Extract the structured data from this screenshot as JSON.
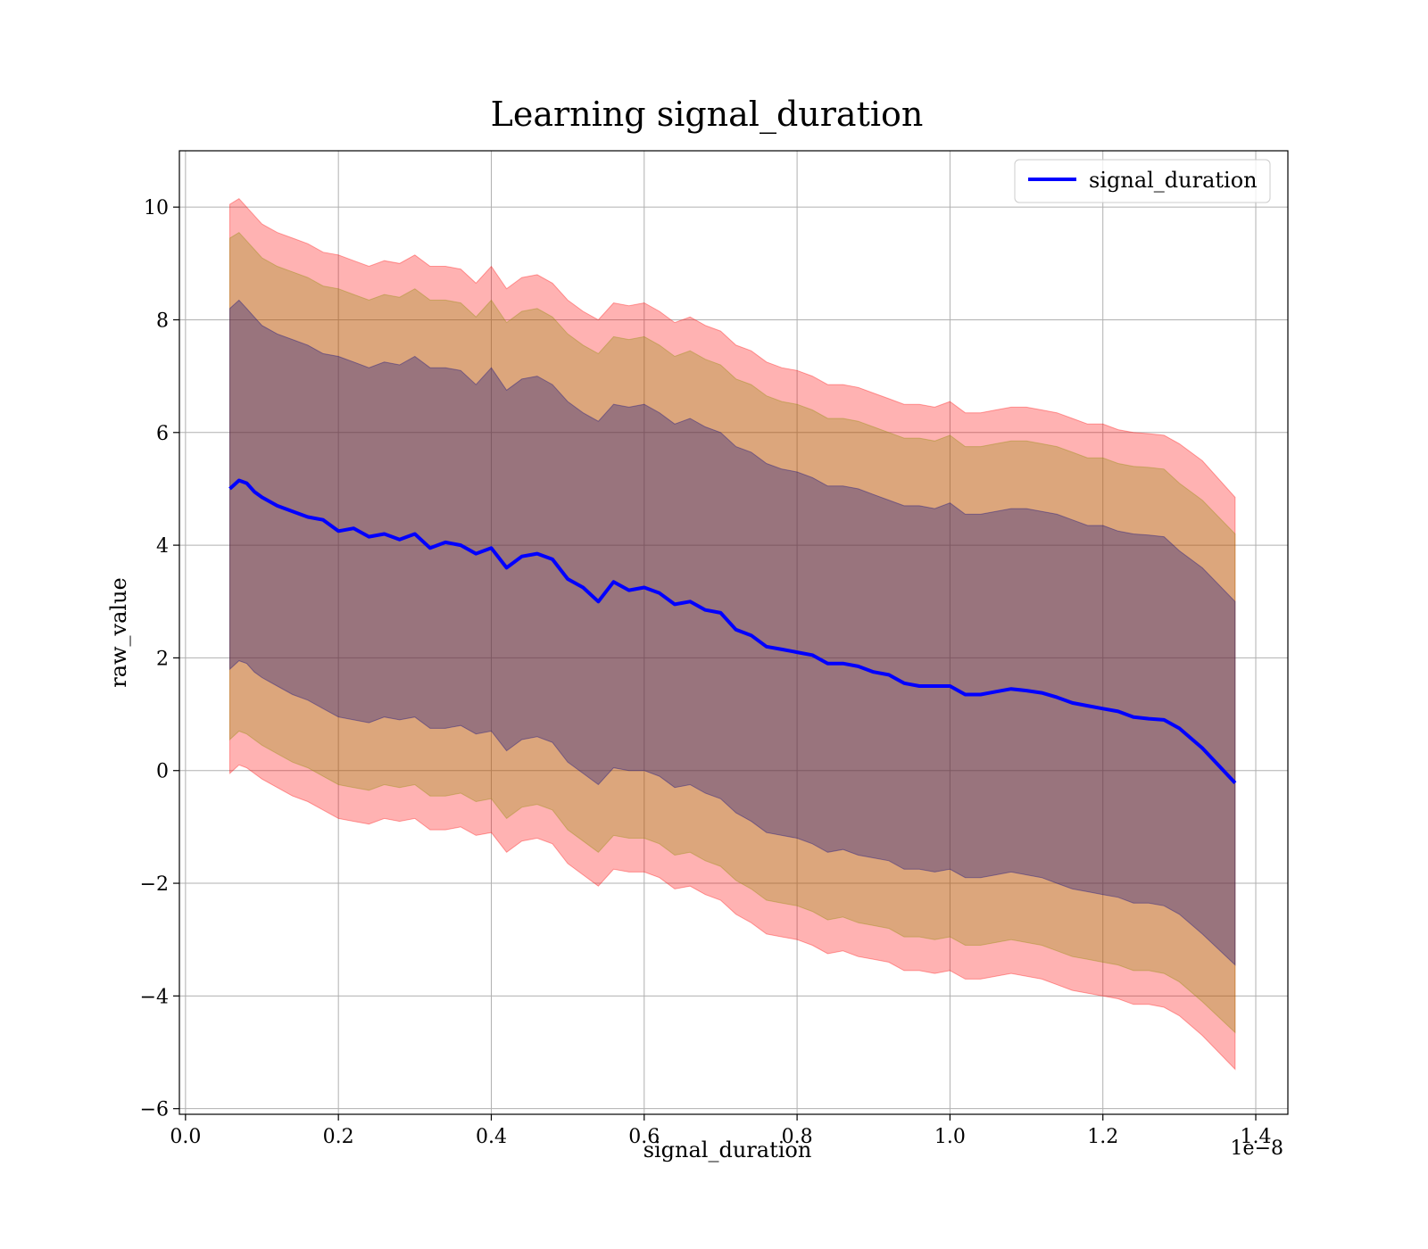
{
  "chart_data": {
    "type": "line",
    "title": "Learning signal_duration",
    "xlabel": "signal_duration",
    "ylabel": "raw_value",
    "x_offset_label": "1e−8",
    "xlim": [
      -0.008,
      1.442
    ],
    "ylim": [
      -6.1,
      11.0
    ],
    "x_ticks": [
      0.0,
      0.2,
      0.4,
      0.6,
      0.8,
      1.0,
      1.2,
      1.4
    ],
    "x_tick_labels": [
      "0.0",
      "0.2",
      "0.4",
      "0.6",
      "0.8",
      "1.0",
      "1.2",
      "1.4"
    ],
    "y_ticks": [
      -6,
      -4,
      -2,
      0,
      2,
      4,
      6,
      8,
      10
    ],
    "y_tick_labels": [
      "−6",
      "−4",
      "−2",
      "0",
      "2",
      "4",
      "6",
      "8",
      "10"
    ],
    "grid": true,
    "legend_position": "top-right",
    "x": [
      0.058,
      0.07,
      0.08,
      0.09,
      0.1,
      0.12,
      0.14,
      0.16,
      0.18,
      0.2,
      0.22,
      0.24,
      0.26,
      0.28,
      0.3,
      0.32,
      0.34,
      0.36,
      0.38,
      0.4,
      0.42,
      0.44,
      0.46,
      0.48,
      0.5,
      0.52,
      0.54,
      0.56,
      0.58,
      0.6,
      0.62,
      0.64,
      0.66,
      0.68,
      0.7,
      0.72,
      0.74,
      0.76,
      0.78,
      0.8,
      0.82,
      0.84,
      0.86,
      0.88,
      0.9,
      0.92,
      0.94,
      0.96,
      0.98,
      1.0,
      1.02,
      1.04,
      1.06,
      1.08,
      1.1,
      1.12,
      1.14,
      1.16,
      1.18,
      1.2,
      1.22,
      1.24,
      1.26,
      1.28,
      1.3,
      1.33,
      1.373
    ],
    "series": [
      {
        "name": "signal_duration",
        "color": "#0000ff",
        "values": [
          5.0,
          5.15,
          5.1,
          4.95,
          4.85,
          4.7,
          4.6,
          4.5,
          4.45,
          4.25,
          4.3,
          4.15,
          4.2,
          4.1,
          4.2,
          3.95,
          4.05,
          4.0,
          3.85,
          3.95,
          3.6,
          3.8,
          3.85,
          3.75,
          3.4,
          3.25,
          3.0,
          3.35,
          3.2,
          3.25,
          3.15,
          2.95,
          3.0,
          2.85,
          2.8,
          2.5,
          2.4,
          2.2,
          2.15,
          2.1,
          2.05,
          1.9,
          1.9,
          1.85,
          1.75,
          1.7,
          1.55,
          1.5,
          1.5,
          1.5,
          1.35,
          1.35,
          1.4,
          1.45,
          1.42,
          1.38,
          1.3,
          1.2,
          1.15,
          1.1,
          1.05,
          0.95,
          0.92,
          0.9,
          0.75,
          0.4,
          -0.22
        ]
      }
    ],
    "bands": [
      {
        "color": "#ff0000",
        "opacity": 0.3,
        "upper": [
          10.05,
          10.15,
          10.0,
          9.85,
          9.7,
          9.55,
          9.45,
          9.35,
          9.2,
          9.15,
          9.05,
          8.95,
          9.05,
          9.0,
          9.15,
          8.95,
          8.95,
          8.9,
          8.65,
          8.95,
          8.55,
          8.75,
          8.8,
          8.65,
          8.35,
          8.15,
          8.0,
          8.3,
          8.25,
          8.3,
          8.15,
          7.95,
          8.05,
          7.9,
          7.8,
          7.55,
          7.45,
          7.25,
          7.15,
          7.1,
          7.0,
          6.85,
          6.85,
          6.8,
          6.7,
          6.6,
          6.5,
          6.5,
          6.45,
          6.55,
          6.35,
          6.35,
          6.4,
          6.45,
          6.45,
          6.4,
          6.35,
          6.25,
          6.15,
          6.15,
          6.05,
          6.0,
          5.98,
          5.95,
          5.8,
          5.5,
          4.85
        ],
        "lower": [
          -0.05,
          0.1,
          0.05,
          -0.05,
          -0.15,
          -0.3,
          -0.45,
          -0.55,
          -0.7,
          -0.85,
          -0.9,
          -0.95,
          -0.85,
          -0.9,
          -0.85,
          -1.05,
          -1.05,
          -1.0,
          -1.15,
          -1.1,
          -1.45,
          -1.25,
          -1.2,
          -1.3,
          -1.65,
          -1.85,
          -2.05,
          -1.75,
          -1.8,
          -1.8,
          -1.9,
          -2.1,
          -2.05,
          -2.2,
          -2.3,
          -2.55,
          -2.7,
          -2.9,
          -2.95,
          -3.0,
          -3.1,
          -3.25,
          -3.2,
          -3.3,
          -3.35,
          -3.4,
          -3.55,
          -3.55,
          -3.6,
          -3.55,
          -3.7,
          -3.7,
          -3.65,
          -3.6,
          -3.65,
          -3.7,
          -3.8,
          -3.9,
          -3.95,
          -4.0,
          -4.05,
          -4.15,
          -4.15,
          -4.2,
          -4.35,
          -4.7,
          -5.3
        ]
      },
      {
        "color": "#8b8b00",
        "opacity": 0.3,
        "upper": [
          9.45,
          9.55,
          9.4,
          9.25,
          9.1,
          8.95,
          8.85,
          8.75,
          8.6,
          8.55,
          8.45,
          8.35,
          8.45,
          8.4,
          8.55,
          8.35,
          8.35,
          8.3,
          8.05,
          8.35,
          7.95,
          8.15,
          8.2,
          8.05,
          7.75,
          7.55,
          7.4,
          7.7,
          7.65,
          7.7,
          7.55,
          7.35,
          7.45,
          7.3,
          7.2,
          6.95,
          6.85,
          6.65,
          6.55,
          6.5,
          6.4,
          6.25,
          6.25,
          6.2,
          6.1,
          6.0,
          5.9,
          5.9,
          5.85,
          5.95,
          5.75,
          5.75,
          5.8,
          5.85,
          5.85,
          5.8,
          5.75,
          5.65,
          5.55,
          5.55,
          5.45,
          5.4,
          5.38,
          5.35,
          5.1,
          4.8,
          4.2
        ],
        "lower": [
          0.55,
          0.7,
          0.65,
          0.55,
          0.45,
          0.3,
          0.15,
          0.05,
          -0.1,
          -0.25,
          -0.3,
          -0.35,
          -0.25,
          -0.3,
          -0.25,
          -0.45,
          -0.45,
          -0.4,
          -0.55,
          -0.5,
          -0.85,
          -0.65,
          -0.6,
          -0.7,
          -1.05,
          -1.25,
          -1.45,
          -1.15,
          -1.2,
          -1.2,
          -1.3,
          -1.5,
          -1.45,
          -1.6,
          -1.7,
          -1.95,
          -2.1,
          -2.3,
          -2.35,
          -2.4,
          -2.5,
          -2.65,
          -2.6,
          -2.7,
          -2.75,
          -2.8,
          -2.95,
          -2.95,
          -3.0,
          -2.95,
          -3.1,
          -3.1,
          -3.05,
          -3.0,
          -3.05,
          -3.1,
          -3.2,
          -3.3,
          -3.35,
          -3.4,
          -3.45,
          -3.55,
          -3.55,
          -3.6,
          -3.75,
          -4.1,
          -4.65
        ]
      },
      {
        "color": "#000080",
        "opacity": 0.3,
        "upper": [
          8.2,
          8.35,
          8.2,
          8.05,
          7.9,
          7.75,
          7.65,
          7.55,
          7.4,
          7.35,
          7.25,
          7.15,
          7.25,
          7.2,
          7.35,
          7.15,
          7.15,
          7.1,
          6.85,
          7.15,
          6.75,
          6.95,
          7.0,
          6.85,
          6.55,
          6.35,
          6.2,
          6.5,
          6.45,
          6.5,
          6.35,
          6.15,
          6.25,
          6.1,
          6.0,
          5.75,
          5.65,
          5.45,
          5.35,
          5.3,
          5.2,
          5.05,
          5.05,
          5.0,
          4.9,
          4.8,
          4.7,
          4.7,
          4.65,
          4.75,
          4.55,
          4.55,
          4.6,
          4.65,
          4.65,
          4.6,
          4.55,
          4.45,
          4.35,
          4.35,
          4.25,
          4.2,
          4.18,
          4.15,
          3.9,
          3.6,
          3.0
        ],
        "lower": [
          1.8,
          1.95,
          1.9,
          1.75,
          1.65,
          1.5,
          1.35,
          1.25,
          1.1,
          0.95,
          0.9,
          0.85,
          0.95,
          0.9,
          0.95,
          0.75,
          0.75,
          0.8,
          0.65,
          0.7,
          0.35,
          0.55,
          0.6,
          0.5,
          0.15,
          -0.05,
          -0.25,
          0.05,
          0.0,
          0.0,
          -0.1,
          -0.3,
          -0.25,
          -0.4,
          -0.5,
          -0.75,
          -0.9,
          -1.1,
          -1.15,
          -1.2,
          -1.3,
          -1.45,
          -1.4,
          -1.5,
          -1.55,
          -1.6,
          -1.75,
          -1.75,
          -1.8,
          -1.75,
          -1.9,
          -1.9,
          -1.85,
          -1.8,
          -1.85,
          -1.9,
          -2.0,
          -2.1,
          -2.15,
          -2.2,
          -2.25,
          -2.35,
          -2.35,
          -2.4,
          -2.55,
          -2.9,
          -3.45
        ]
      }
    ]
  }
}
